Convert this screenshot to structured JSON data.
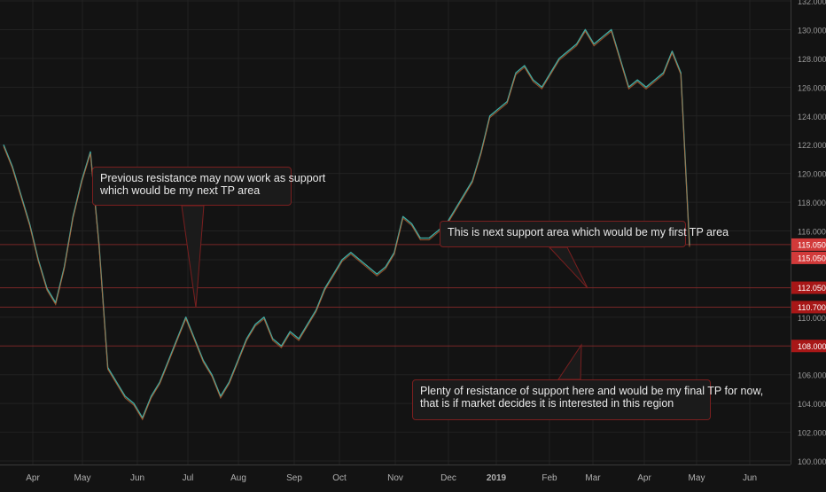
{
  "chart_data": {
    "type": "line",
    "title": "",
    "xlabel": "",
    "ylabel": "",
    "ylim": [
      100,
      132
    ],
    "grid": true,
    "x_ticks": [
      "Apr",
      "May",
      "Jun",
      "Jul",
      "Aug",
      "Sep",
      "Oct",
      "Nov",
      "Dec",
      "2019",
      "Feb",
      "Mar",
      "Apr",
      "May",
      "Jun"
    ],
    "y_ticks": [
      "100.000",
      "102.000",
      "104.000",
      "106.000",
      "110.000",
      "114.000",
      "116.000",
      "118.000",
      "120.000",
      "122.000",
      "124.000",
      "126.000",
      "128.000",
      "130.000",
      "132.000"
    ],
    "series": [
      {
        "name": "",
        "color": "#3fa9a1",
        "values": [
          122.0,
          120.5,
          118.5,
          116.5,
          114.0,
          112.0,
          111.0,
          113.5,
          117.0,
          119.5,
          121.5,
          115.0,
          106.5,
          105.5,
          104.5,
          104.0,
          103.0,
          104.5,
          105.5,
          107.0,
          108.5,
          110.0,
          108.5,
          107.0,
          106.0,
          104.5,
          105.5,
          107.0,
          108.5,
          109.5,
          110.0,
          108.5,
          108.0,
          109.0,
          108.5,
          109.5,
          110.5,
          112.0,
          113.0,
          114.0,
          114.5,
          114.0,
          113.5,
          113.0,
          113.5,
          114.5,
          117.0,
          116.5,
          115.5,
          115.5,
          116.0,
          116.5,
          117.5,
          118.5,
          119.5,
          121.5,
          124.0,
          124.5,
          125.0,
          127.0,
          127.5,
          126.5,
          126.0,
          127.0,
          128.0,
          128.5,
          129.0,
          130.0,
          129.0,
          129.5,
          130.0,
          128.0,
          126.0,
          126.5,
          126.0,
          126.5,
          127.0,
          128.5,
          127.0,
          115.0
        ]
      }
    ],
    "levels": [
      {
        "label": "115.050",
        "value": 115.05
      },
      {
        "label": "115.050",
        "value": 115.05
      },
      {
        "label": "112.050",
        "value": 112.05
      },
      {
        "label": "110.700",
        "value": 110.7
      },
      {
        "label": "108.000",
        "value": 108.0
      }
    ],
    "annotations": [
      {
        "lines": [
          "Previous resistance may now work as support",
          "which would be my next TP area"
        ]
      },
      {
        "lines": [
          "This is next support area which would be my first TP area"
        ]
      },
      {
        "lines": [
          "Plenty of resistance of support here and would be my final TP for now,",
          "that is if market decides it is interested in this region"
        ]
      }
    ]
  }
}
